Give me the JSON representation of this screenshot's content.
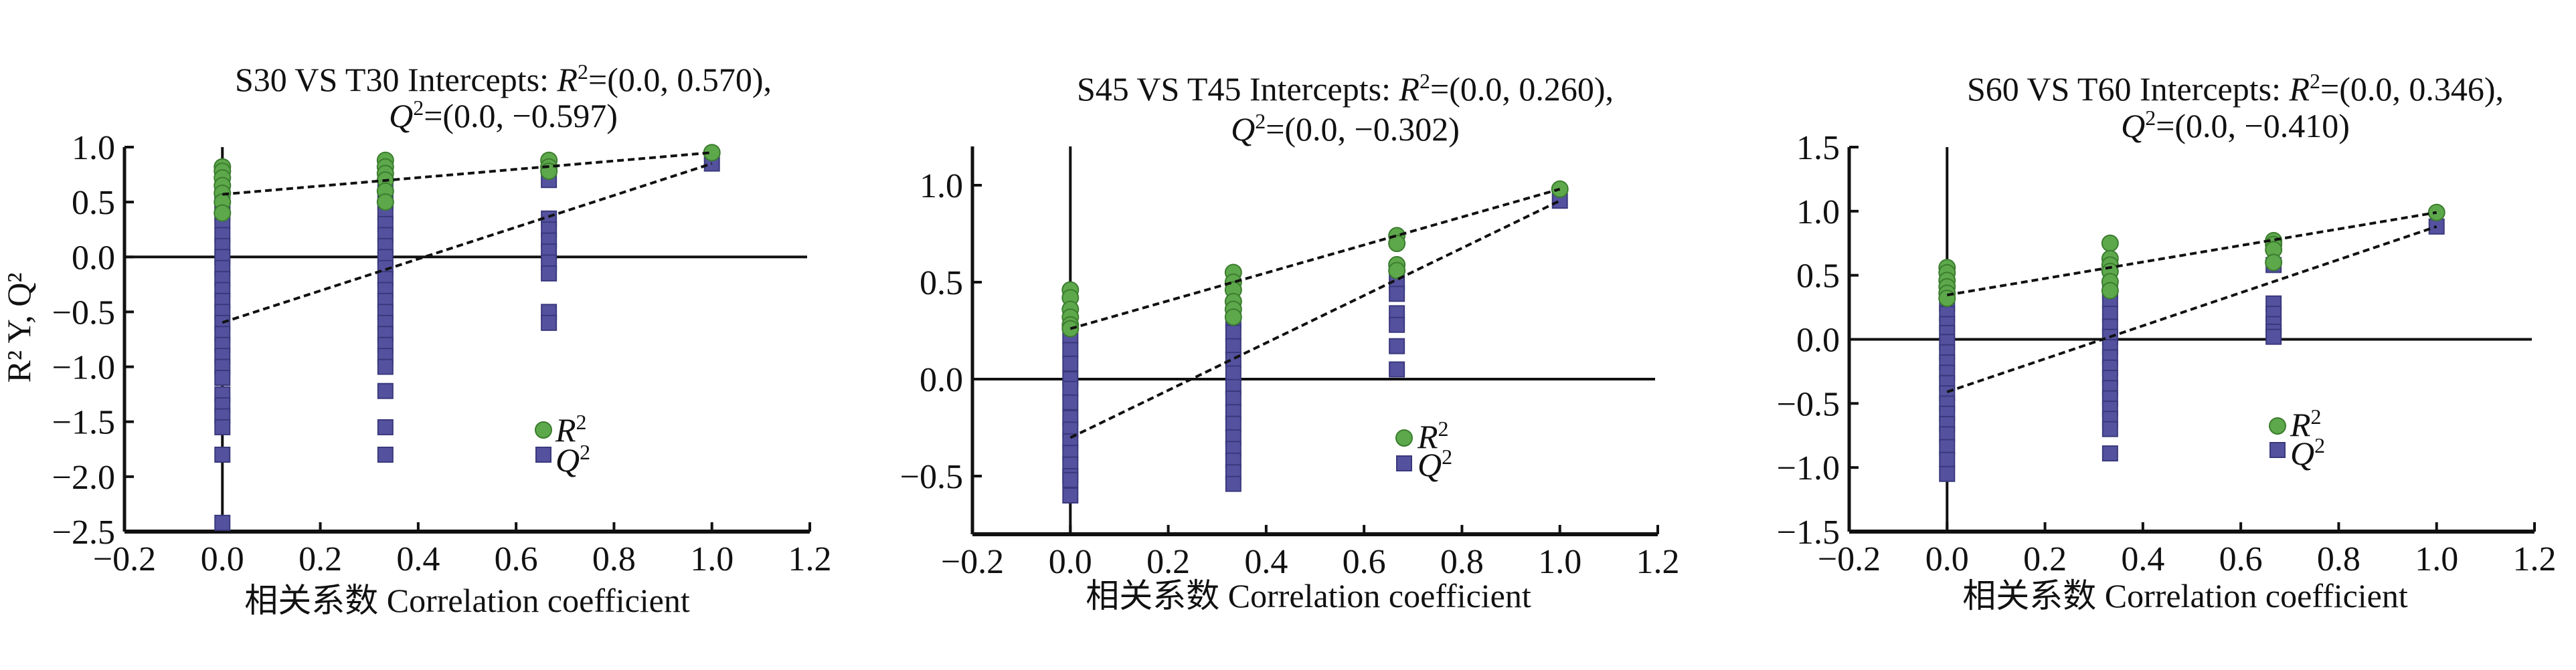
{
  "colors": {
    "r2_fill": "#5ea84c",
    "r2_stroke": "#3b7d2e",
    "q2_fill": "#54529f",
    "q2_stroke": "#3a387c",
    "axis": "#111111"
  },
  "chart_data": [
    {
      "type": "scatter",
      "title_line1_prefix": "S30 VS T30 Intercepts: ",
      "title_r2_symbol": "R",
      "title_r2_value": "=(0.0, 0.570),",
      "title_q2_symbol": "Q",
      "title_q2_value": "=(0.0, −0.597)",
      "superscript": "2",
      "xlabel": "相关系数 Correlation coefficient",
      "ylabel": "R² Y, Q²",
      "xlim": [
        -0.2,
        1.2
      ],
      "ylim": [
        -2.5,
        1.0
      ],
      "xticks": [
        "−0.2",
        "0.0",
        "0.2",
        "0.4",
        "0.6",
        "0.8",
        "1.0",
        "1.2"
      ],
      "yticks": [
        "1.0",
        "0.5",
        "0.0",
        "−0.5",
        "−1.0",
        "−1.5",
        "−2.0",
        "−2.5"
      ],
      "ytick_values": [
        1.0,
        0.5,
        0.0,
        -0.5,
        -1.0,
        -1.5,
        -2.0,
        -2.5
      ],
      "legend": [
        "R²",
        "Q²"
      ],
      "legend_position": "lower-right",
      "r2_intercept": 0.57,
      "q2_intercept": -0.597,
      "series": [
        {
          "name": "R2",
          "x": [
            0,
            0,
            0,
            0,
            0,
            0,
            0,
            0.333,
            0.333,
            0.333,
            0.333,
            0.333,
            0.333,
            0.667,
            0.667,
            0.667,
            1.0
          ],
          "y": [
            0.82,
            0.78,
            0.72,
            0.65,
            0.58,
            0.5,
            0.4,
            0.88,
            0.82,
            0.76,
            0.7,
            0.6,
            0.5,
            0.88,
            0.82,
            0.78,
            0.95
          ]
        },
        {
          "name": "Q2",
          "x": [
            0,
            0,
            0,
            0,
            0,
            0,
            0,
            0,
            0,
            0,
            0,
            0,
            0,
            0,
            0,
            0,
            0,
            0,
            0,
            0,
            0,
            0,
            0,
            0,
            0.333,
            0.333,
            0.333,
            0.333,
            0.333,
            0.333,
            0.333,
            0.333,
            0.333,
            0.333,
            0.333,
            0.333,
            0.333,
            0.333,
            0.333,
            0.333,
            0.333,
            0.333,
            0.333,
            0.333,
            0.667,
            0.667,
            0.667,
            0.667,
            0.667,
            0.667,
            0.667,
            0.667,
            0.667,
            1.0
          ],
          "y": [
            0.55,
            0.48,
            0.4,
            0.33,
            0.2,
            0.1,
            0.0,
            -0.1,
            -0.2,
            -0.3,
            -0.4,
            -0.5,
            -0.6,
            -0.7,
            -0.8,
            -0.9,
            -1.0,
            -1.1,
            -1.25,
            -1.35,
            -1.45,
            -1.55,
            -1.8,
            -2.42,
            0.6,
            0.5,
            0.4,
            0.3,
            0.2,
            0.1,
            0.0,
            -0.1,
            -0.2,
            -0.3,
            -0.4,
            -0.5,
            -0.6,
            -0.7,
            -0.8,
            -0.9,
            -1.0,
            -1.22,
            -1.55,
            -1.8,
            0.7,
            0.35,
            0.25,
            0.15,
            0.05,
            -0.05,
            -0.15,
            -0.5,
            -0.6,
            0.85
          ]
        }
      ]
    },
    {
      "type": "scatter",
      "title_line1_prefix": "S45 VS T45 Intercepts: ",
      "title_r2_symbol": "R",
      "title_r2_value": "=(0.0, 0.260),",
      "title_q2_symbol": "Q",
      "title_q2_value": "=(0.0, −0.302)",
      "superscript": "2",
      "xlabel": "相关系数 Correlation coefficient",
      "xlim": [
        -0.2,
        1.2
      ],
      "ylim": [
        -0.8,
        1.2
      ],
      "xticks": [
        "−0.2",
        "0.0",
        "0.2",
        "0.4",
        "0.6",
        "0.8",
        "1.0",
        "1.2"
      ],
      "yticks": [
        "1.0",
        "0.5",
        "0.0",
        "−0.5"
      ],
      "ytick_values": [
        1.0,
        0.5,
        0.0,
        -0.5
      ],
      "legend": [
        "R²",
        "Q²"
      ],
      "legend_position": "lower-right",
      "r2_intercept": 0.26,
      "q2_intercept": -0.302,
      "series": [
        {
          "name": "R2",
          "x": [
            0,
            0,
            0,
            0,
            0,
            0,
            0.333,
            0.333,
            0.333,
            0.333,
            0.333,
            0.333,
            0.667,
            0.667,
            0.667,
            0.667,
            1.0
          ],
          "y": [
            0.46,
            0.42,
            0.36,
            0.32,
            0.28,
            0.26,
            0.55,
            0.5,
            0.46,
            0.4,
            0.36,
            0.32,
            0.74,
            0.7,
            0.59,
            0.56,
            0.98
          ]
        },
        {
          "name": "Q2",
          "x": [
            0,
            0,
            0,
            0,
            0,
            0,
            0,
            0,
            0,
            0,
            0,
            0,
            0,
            0,
            0.333,
            0.333,
            0.333,
            0.333,
            0.333,
            0.333,
            0.333,
            0.333,
            0.333,
            0.333,
            0.333,
            0.333,
            0.333,
            0.333,
            0.667,
            0.667,
            0.667,
            0.667,
            0.667,
            0.667,
            1.0
          ],
          "y": [
            0.22,
            0.15,
            0.08,
            0.0,
            -0.05,
            -0.12,
            -0.2,
            -0.26,
            -0.32,
            -0.38,
            -0.44,
            -0.5,
            -0.52,
            -0.6,
            0.3,
            0.24,
            0.17,
            0.1,
            0.03,
            -0.04,
            -0.1,
            -0.17,
            -0.23,
            -0.3,
            -0.36,
            -0.42,
            -0.48,
            -0.54,
            0.5,
            0.44,
            0.34,
            0.28,
            0.17,
            0.05,
            0.92
          ]
        }
      ]
    },
    {
      "type": "scatter",
      "title_line1_prefix": "S60 VS T60 Intercepts: ",
      "title_r2_symbol": "R",
      "title_r2_value": "=(0.0, 0.346),",
      "title_q2_symbol": "Q",
      "title_q2_value": "=(0.0, −0.410)",
      "superscript": "2",
      "xlabel": "相关系数 Correlation coefficient",
      "xlim": [
        -0.2,
        1.2
      ],
      "ylim": [
        -1.5,
        1.5
      ],
      "xticks": [
        "−0.2",
        "0.0",
        "0.2",
        "0.4",
        "0.6",
        "0.8",
        "1.0",
        "1.2"
      ],
      "yticks": [
        "1.5",
        "1.0",
        "0.5",
        "0.0",
        "−0.5",
        "−1.0",
        "−1.5"
      ],
      "ytick_values": [
        1.5,
        1.0,
        0.5,
        0.0,
        -0.5,
        -1.0,
        -1.5
      ],
      "legend": [
        "R²",
        "Q²"
      ],
      "legend_position": "lower-right",
      "r2_intercept": 0.346,
      "q2_intercept": -0.41,
      "series": [
        {
          "name": "R2",
          "x": [
            0,
            0,
            0,
            0,
            0,
            0,
            0.333,
            0.333,
            0.333,
            0.333,
            0.333,
            0.333,
            0.667,
            0.667,
            0.667,
            0.667,
            1.0
          ],
          "y": [
            0.56,
            0.52,
            0.46,
            0.41,
            0.36,
            0.32,
            0.75,
            0.63,
            0.58,
            0.53,
            0.45,
            0.38,
            0.77,
            0.74,
            0.7,
            0.6,
            0.99
          ]
        },
        {
          "name": "Q2",
          "x": [
            0,
            0,
            0,
            0,
            0,
            0,
            0,
            0,
            0,
            0,
            0,
            0,
            0,
            0,
            0,
            0,
            0,
            0.333,
            0.333,
            0.333,
            0.333,
            0.333,
            0.333,
            0.333,
            0.333,
            0.333,
            0.333,
            0.333,
            0.333,
            0.333,
            0.333,
            0.333,
            0.667,
            0.667,
            0.667,
            0.667,
            0.667,
            0.667,
            1.0
          ],
          "y": [
            0.28,
            0.2,
            0.12,
            0.05,
            -0.02,
            -0.1,
            -0.18,
            -0.26,
            -0.34,
            -0.42,
            -0.5,
            -0.58,
            -0.66,
            -0.74,
            -0.84,
            -0.94,
            -1.05,
            0.38,
            0.3,
            0.2,
            0.1,
            0.02,
            -0.06,
            -0.14,
            -0.22,
            -0.3,
            -0.38,
            -0.46,
            -0.54,
            -0.62,
            -0.7,
            -0.89,
            0.58,
            0.28,
            0.2,
            0.12,
            0.06,
            0.02,
            0.88
          ]
        }
      ]
    }
  ]
}
